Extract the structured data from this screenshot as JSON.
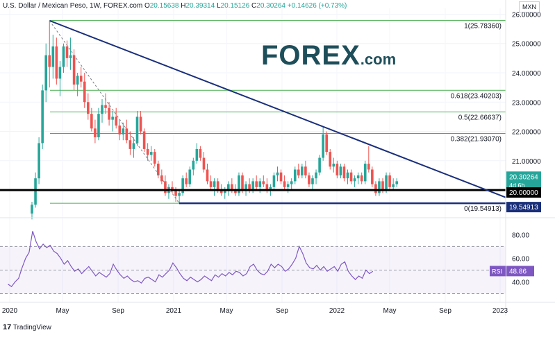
{
  "header": {
    "symbol": "U.S. Dollar / Mexican Peso, 1W, FOREX.com",
    "o_label": "O",
    "o": "20.15638",
    "h_label": "H",
    "h": "20.39314",
    "l_label": "L",
    "l": "20.15126",
    "c_label": "C",
    "c": "20.30264",
    "change": "+0.14626 (+0.73%)"
  },
  "currency_button": "MXN",
  "logo": {
    "main": "FOREX",
    "suffix": ".com"
  },
  "footer": {
    "brand_mark": "17",
    "brand": "TradingView"
  },
  "colors": {
    "up": "#26a69a",
    "down": "#ef5350",
    "trend": "#1a2f7a",
    "fib": "#4caf50",
    "rsi": "#7e57c2",
    "support": "#000000",
    "support2": "#1a2f7a",
    "brand": "#1d4e5a"
  },
  "chart_data": [
    {
      "type": "candlestick",
      "x_ticks": [
        "2020",
        "May",
        "Sep",
        "2021",
        "May",
        "Sep",
        "2022",
        "May",
        "Sep",
        "2023"
      ],
      "y_ticks": [
        "26.00000",
        "25.00000",
        "24.00000",
        "23.00000",
        "22.00000",
        "21.00000"
      ],
      "ylim": [
        19.15,
        26.2
      ],
      "current_price": "20.30264",
      "countdown": "4d 6h",
      "support_label": "20.00000",
      "support2_label": "19.54913",
      "fib_levels": [
        {
          "label": "1(25.78360)",
          "value": 25.7836
        },
        {
          "label": "0.618(23.40203)",
          "value": 23.40203
        },
        {
          "label": "0.5(22.66637)",
          "value": 22.66637
        },
        {
          "label": "0.382(21.93070)",
          "value": 21.9307
        },
        {
          "label": "0(19.54913)",
          "value": 19.54913
        }
      ],
      "series": [
        {
          "values": [
            [
              19.2,
              19.6,
              19.0,
              19.5
            ],
            [
              19.5,
              20.6,
              19.4,
              20.4
            ],
            [
              20.4,
              21.8,
              20.2,
              21.6
            ],
            [
              21.6,
              23.6,
              21.4,
              23.4
            ],
            [
              23.4,
              25.0,
              23.0,
              24.6
            ],
            [
              24.6,
              25.78,
              23.5,
              24.2
            ],
            [
              24.2,
              25.3,
              23.8,
              24.9
            ],
            [
              24.9,
              25.2,
              23.6,
              23.8
            ],
            [
              23.8,
              24.4,
              23.2,
              24.2
            ],
            [
              24.2,
              25.0,
              24.0,
              24.9
            ],
            [
              24.9,
              25.1,
              24.2,
              24.5
            ],
            [
              24.5,
              25.2,
              24.1,
              24.6
            ],
            [
              24.6,
              24.8,
              23.4,
              23.6
            ],
            [
              23.6,
              24.0,
              23.2,
              23.9
            ],
            [
              23.9,
              24.2,
              23.5,
              23.7
            ],
            [
              23.7,
              24.0,
              22.8,
              23.0
            ],
            [
              23.0,
              23.3,
              22.4,
              22.6
            ],
            [
              22.6,
              22.8,
              22.0,
              22.1
            ],
            [
              22.1,
              22.4,
              21.6,
              21.8
            ],
            [
              21.8,
              22.8,
              21.7,
              22.6
            ],
            [
              22.6,
              23.1,
              22.3,
              22.9
            ],
            [
              22.9,
              23.3,
              22.6,
              22.8
            ],
            [
              22.8,
              23.0,
              22.2,
              22.4
            ],
            [
              22.4,
              22.7,
              22.0,
              22.5
            ],
            [
              22.5,
              22.8,
              22.1,
              22.2
            ],
            [
              22.2,
              22.4,
              21.7,
              21.9
            ],
            [
              21.9,
              22.3,
              21.7,
              22.1
            ],
            [
              22.1,
              22.4,
              21.6,
              21.7
            ],
            [
              21.7,
              22.0,
              21.2,
              21.4
            ],
            [
              21.4,
              21.8,
              21.1,
              21.6
            ],
            [
              21.6,
              22.7,
              21.5,
              22.5
            ],
            [
              22.5,
              22.7,
              21.9,
              22.0
            ],
            [
              22.0,
              22.1,
              21.3,
              21.4
            ],
            [
              21.4,
              21.6,
              21.0,
              21.2
            ],
            [
              21.2,
              21.5,
              21.0,
              21.3
            ],
            [
              21.3,
              21.4,
              20.8,
              20.9
            ],
            [
              20.9,
              21.0,
              20.4,
              20.5
            ],
            [
              20.5,
              20.7,
              20.2,
              20.3
            ],
            [
              20.3,
              20.5,
              19.8,
              19.9
            ],
            [
              19.9,
              20.2,
              19.7,
              20.1
            ],
            [
              20.1,
              20.3,
              19.9,
              20.0
            ],
            [
              20.0,
              20.1,
              19.6,
              19.8
            ],
            [
              19.8,
              20.0,
              19.55,
              19.9
            ],
            [
              19.9,
              20.5,
              19.8,
              20.4
            ],
            [
              20.4,
              20.6,
              20.1,
              20.2
            ],
            [
              20.2,
              20.8,
              20.1,
              20.7
            ],
            [
              20.7,
              21.1,
              20.5,
              21.0
            ],
            [
              21.0,
              21.6,
              20.9,
              21.4
            ],
            [
              21.4,
              21.5,
              21.0,
              21.1
            ],
            [
              21.1,
              21.3,
              20.6,
              20.7
            ],
            [
              20.7,
              20.9,
              20.2,
              20.3
            ],
            [
              20.3,
              20.5,
              20.0,
              20.1
            ],
            [
              20.1,
              20.4,
              19.8,
              20.3
            ],
            [
              20.3,
              20.4,
              19.9,
              20.0
            ],
            [
              20.0,
              20.2,
              19.8,
              19.9
            ],
            [
              19.9,
              20.1,
              19.7,
              20.0
            ],
            [
              20.0,
              20.3,
              19.8,
              20.2
            ],
            [
              20.2,
              20.4,
              19.9,
              20.0
            ],
            [
              20.0,
              20.2,
              19.8,
              19.9
            ],
            [
              19.9,
              20.6,
              19.8,
              20.5
            ],
            [
              20.5,
              20.6,
              19.9,
              20.0
            ],
            [
              20.0,
              20.3,
              19.8,
              20.2
            ],
            [
              20.2,
              20.4,
              19.9,
              20.0
            ],
            [
              20.0,
              20.4,
              19.9,
              20.3
            ],
            [
              20.3,
              20.5,
              20.0,
              20.1
            ],
            [
              20.1,
              20.4,
              19.9,
              20.3
            ],
            [
              20.3,
              20.5,
              20.1,
              20.2
            ],
            [
              20.2,
              20.4,
              19.9,
              20.0
            ],
            [
              20.0,
              20.2,
              19.8,
              20.1
            ],
            [
              20.1,
              20.6,
              20.0,
              20.5
            ],
            [
              20.5,
              20.8,
              20.3,
              20.6
            ],
            [
              20.6,
              20.7,
              20.2,
              20.3
            ],
            [
              20.3,
              20.5,
              20.0,
              20.1
            ],
            [
              20.1,
              20.3,
              19.9,
              20.2
            ],
            [
              20.2,
              20.4,
              20.0,
              20.3
            ],
            [
              20.3,
              20.8,
              20.2,
              20.7
            ],
            [
              20.7,
              20.9,
              20.4,
              20.5
            ],
            [
              20.5,
              20.9,
              20.4,
              20.8
            ],
            [
              20.8,
              21.0,
              20.4,
              20.5
            ],
            [
              20.5,
              20.6,
              20.1,
              20.2
            ],
            [
              20.2,
              20.5,
              20.0,
              20.4
            ],
            [
              20.4,
              20.7,
              20.2,
              20.6
            ],
            [
              20.6,
              21.2,
              20.5,
              21.1
            ],
            [
              21.1,
              22.15,
              21.0,
              21.9
            ],
            [
              21.9,
              22.0,
              21.2,
              21.3
            ],
            [
              21.3,
              21.4,
              20.7,
              20.8
            ],
            [
              20.8,
              21.1,
              20.6,
              20.9
            ],
            [
              20.9,
              21.0,
              20.4,
              20.5
            ],
            [
              20.5,
              20.9,
              20.4,
              20.8
            ],
            [
              20.8,
              20.9,
              20.3,
              20.4
            ],
            [
              20.4,
              20.7,
              20.2,
              20.6
            ],
            [
              20.6,
              20.7,
              20.2,
              20.3
            ],
            [
              20.3,
              20.5,
              20.1,
              20.4
            ],
            [
              20.4,
              20.6,
              20.2,
              20.5
            ],
            [
              20.5,
              20.6,
              20.2,
              20.3
            ],
            [
              20.3,
              21.0,
              20.2,
              20.9
            ],
            [
              20.9,
              21.5,
              20.6,
              20.7
            ],
            [
              20.7,
              20.8,
              20.1,
              20.2
            ],
            [
              20.2,
              20.3,
              19.8,
              19.9
            ],
            [
              19.9,
              20.4,
              19.8,
              20.3
            ],
            [
              20.3,
              20.4,
              19.9,
              20.0
            ],
            [
              20.0,
              20.6,
              19.9,
              20.5
            ],
            [
              20.5,
              20.6,
              20.0,
              20.1
            ],
            [
              20.1,
              20.4,
              20.0,
              20.2
            ],
            [
              20.2,
              20.4,
              20.1,
              20.3
            ]
          ]
        }
      ]
    },
    {
      "type": "line",
      "label": "RSI",
      "value_label": "48.86",
      "y_ticks": [
        "80.00",
        "60.00",
        "40.00"
      ],
      "ylim": [
        25,
        92
      ],
      "levels": [
        70,
        50,
        30
      ],
      "values": [
        38,
        36,
        40,
        43,
        52,
        60,
        65,
        83,
        74,
        68,
        72,
        69,
        71,
        66,
        64,
        60,
        55,
        58,
        53,
        49,
        51,
        47,
        50,
        53,
        49,
        45,
        48,
        46,
        44,
        47,
        55,
        50,
        46,
        43,
        45,
        42,
        40,
        41,
        39,
        43,
        44,
        42,
        40,
        46,
        44,
        47,
        50,
        56,
        52,
        47,
        43,
        41,
        44,
        42,
        40,
        42,
        45,
        43,
        41,
        46,
        44,
        47,
        45,
        48,
        46,
        49,
        48,
        45,
        47,
        53,
        55,
        50,
        47,
        46,
        49,
        55,
        52,
        55,
        53,
        49,
        51,
        55,
        60,
        70,
        64,
        56,
        52,
        51,
        54,
        50,
        53,
        49,
        51,
        53,
        49,
        55,
        57,
        49,
        45,
        42,
        45,
        43,
        50,
        47,
        49
      ]
    }
  ]
}
